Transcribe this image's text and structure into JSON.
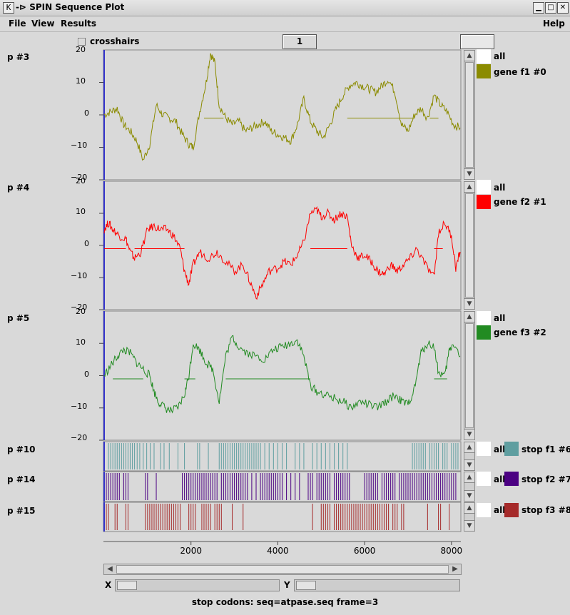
{
  "window": {
    "title": "SPIN Sequence Plot",
    "app_icon": "K",
    "pin_glyph": "-⊳"
  },
  "menu": {
    "file": "File",
    "view": "View",
    "results": "Results",
    "help": "Help"
  },
  "toolbar": {
    "crosshairs_label": "crosshairs",
    "crosshairs_checked": false,
    "counter_value": "1",
    "blank_field_value": ""
  },
  "plots": [
    {
      "label": "p #3",
      "type": "line",
      "ylim": [
        -20,
        20
      ],
      "yticks": [
        10,
        0,
        -10,
        -20
      ],
      "ytick_labels": [
        "10",
        "0",
        "−10",
        "−20"
      ],
      "top_tick_label": "20",
      "color": "#8b8b00",
      "legend": [
        {
          "label": "all",
          "swatch": "#ffffff"
        },
        {
          "label": "gene f1 #0",
          "swatch": "#8b8b00"
        }
      ],
      "series_x": [
        0,
        150,
        300,
        450,
        600,
        750,
        900,
        1050,
        1200,
        1350,
        1500,
        1650,
        1800,
        1950,
        2050,
        2200,
        2350,
        2450,
        2550,
        2650,
        2800,
        2950,
        3100,
        3250,
        3400,
        3550,
        3700,
        3850,
        4000,
        4150,
        4300,
        4450,
        4600,
        4750,
        4900,
        5050,
        5200,
        5350,
        5500,
        5650,
        5800,
        5950,
        6100,
        6250,
        6400,
        6550,
        6700,
        6850,
        7000,
        7150,
        7300,
        7450,
        7600,
        7750,
        7900,
        8050,
        8200
      ],
      "series_y": [
        0,
        1,
        2,
        -3,
        -5,
        -8,
        -14,
        -9,
        3,
        0,
        -1,
        -2,
        -6,
        -9,
        -10,
        1,
        10,
        19,
        16,
        3,
        -1,
        -3,
        -2,
        -5,
        -4,
        -3,
        -2,
        -5,
        -6,
        -7,
        -8,
        -3,
        5,
        -2,
        -5,
        -7,
        -3,
        2,
        6,
        9,
        10,
        9,
        8,
        7,
        9,
        11,
        7,
        -3,
        -5,
        0,
        2,
        -1,
        6,
        3,
        1,
        -3,
        -4
      ],
      "flat_segments": [
        {
          "x0": 2300,
          "x1": 2750,
          "y": -1
        },
        {
          "x0": 5600,
          "x1": 7150,
          "y": -1
        },
        {
          "x0": 7500,
          "x1": 7700,
          "y": -1
        }
      ]
    },
    {
      "label": "p #4",
      "type": "line",
      "ylim": [
        -20,
        20
      ],
      "yticks": [
        10,
        0,
        -10,
        -20
      ],
      "ytick_labels": [
        "10",
        "0",
        "−10",
        "−20"
      ],
      "top_tick_label": "20",
      "color": "#ff0000",
      "legend": [
        {
          "label": "all",
          "swatch": "#ffffff"
        },
        {
          "label": "gene f2 #1",
          "swatch": "#ff0000"
        }
      ],
      "series_x": [
        0,
        100,
        200,
        350,
        500,
        600,
        700,
        850,
        1000,
        1150,
        1300,
        1450,
        1600,
        1750,
        1850,
        1950,
        2050,
        2200,
        2400,
        2600,
        2800,
        3000,
        3200,
        3350,
        3500,
        3650,
        3800,
        4000,
        4150,
        4300,
        4450,
        4600,
        4750,
        4900,
        5000,
        5150,
        5300,
        5450,
        5600,
        5700,
        5850,
        6000,
        6150,
        6300,
        6450,
        6600,
        6750,
        6900,
        7050,
        7200,
        7400,
        7600,
        7700,
        7850,
        8000,
        8100,
        8200
      ],
      "series_y": [
        5,
        7,
        5,
        3,
        2,
        -2,
        -4,
        -2,
        5,
        6,
        5,
        5,
        3,
        -1,
        -8,
        -12,
        -6,
        -2,
        -4,
        -2,
        -5,
        -8,
        -6,
        -11,
        -16,
        -12,
        -8,
        -7,
        -5,
        -6,
        -3,
        1,
        10,
        11,
        9,
        10,
        8,
        10,
        9,
        0,
        -4,
        -3,
        -5,
        -8,
        -9,
        -6,
        -8,
        -6,
        -4,
        -1,
        -6,
        -10,
        4,
        7,
        3,
        -7,
        -2
      ],
      "flat_segments": [
        {
          "x0": 0,
          "x1": 500,
          "y": -1
        },
        {
          "x0": 700,
          "x1": 1850,
          "y": -1
        },
        {
          "x0": 4750,
          "x1": 5600,
          "y": -1
        },
        {
          "x0": 7600,
          "x1": 7800,
          "y": -1
        }
      ]
    },
    {
      "label": "p #5",
      "type": "line",
      "ylim": [
        -20,
        20
      ],
      "yticks": [
        10,
        0,
        -10,
        -20
      ],
      "ytick_labels": [
        "10",
        "0",
        "−10",
        "−20"
      ],
      "top_tick_label": "20",
      "color": "#228b22",
      "legend": [
        {
          "label": "all",
          "swatch": "#ffffff"
        },
        {
          "label": "gene f3 #2",
          "swatch": "#228b22"
        }
      ],
      "series_x": [
        0,
        150,
        300,
        450,
        600,
        750,
        900,
        1050,
        1150,
        1250,
        1400,
        1550,
        1700,
        1850,
        1950,
        2050,
        2200,
        2350,
        2500,
        2650,
        2800,
        2950,
        3100,
        3300,
        3500,
        3700,
        3900,
        4100,
        4300,
        4450,
        4600,
        4750,
        4900,
        5100,
        5300,
        5500,
        5700,
        5900,
        6100,
        6300,
        6500,
        6700,
        6850,
        7000,
        7150,
        7300,
        7450,
        7600,
        7700,
        7850,
        7950,
        8050,
        8200
      ],
      "series_y": [
        0,
        3,
        6,
        8,
        7,
        4,
        2,
        0,
        -5,
        -8,
        -10,
        -11,
        -10,
        -6,
        0,
        10,
        8,
        4,
        2,
        -8,
        6,
        12,
        9,
        7,
        6,
        5,
        8,
        9,
        10,
        11,
        6,
        -3,
        -5,
        -6,
        -7,
        -8,
        -10,
        -8,
        -9,
        -10,
        -8,
        -6,
        -8,
        -9,
        -4,
        7,
        10,
        9,
        1,
        0,
        8,
        10,
        6
      ],
      "flat_segments": [
        {
          "x0": 200,
          "x1": 900,
          "y": -1
        },
        {
          "x0": 1850,
          "x1": 2100,
          "y": -1
        },
        {
          "x0": 2800,
          "x1": 4750,
          "y": -1
        },
        {
          "x0": 7600,
          "x1": 7900,
          "y": -1
        }
      ]
    },
    {
      "label": "p #10",
      "type": "stops",
      "color": "#5f9ea0",
      "legend": [
        {
          "label": "all",
          "swatch": "#ffffff"
        },
        {
          "label": "stop f1 #6",
          "swatch": "#5f9ea0"
        }
      ],
      "stop_positions": [
        100,
        150,
        200,
        250,
        300,
        350,
        400,
        450,
        500,
        550,
        600,
        650,
        700,
        760,
        820,
        900,
        980,
        1060,
        1150,
        1300,
        1380,
        1500,
        1700,
        1850,
        2150,
        2200,
        2400,
        2650,
        2700,
        2750,
        2800,
        2850,
        2900,
        2950,
        3000,
        3050,
        3100,
        3150,
        3200,
        3250,
        3300,
        3350,
        3400,
        3450,
        3500,
        3550,
        3600,
        3700,
        3800,
        3900,
        4000,
        4100,
        4200,
        4400,
        4500,
        4600,
        4800,
        4900,
        5000,
        5100,
        5200,
        5300,
        5400,
        5500,
        5600,
        7100,
        7150,
        7200,
        7250,
        7300,
        7350,
        7400,
        7500,
        7550,
        7600,
        7650,
        7700,
        7800,
        7850,
        7900,
        8000,
        8050,
        8100,
        8150
      ]
    },
    {
      "label": "p #14",
      "type": "stops",
      "color": "#4b0082",
      "legend": [
        {
          "label": "all",
          "swatch": "#ffffff"
        },
        {
          "label": "stop f2 #7",
          "swatch": "#4b0082"
        }
      ],
      "stop_positions": [
        50,
        100,
        150,
        200,
        250,
        300,
        350,
        450,
        500,
        550,
        950,
        1000,
        1200,
        1800,
        1850,
        1900,
        1950,
        2000,
        2050,
        2100,
        2150,
        2200,
        2250,
        2300,
        2350,
        2400,
        2450,
        2500,
        2550,
        2600,
        2700,
        2750,
        2800,
        2850,
        2900,
        2950,
        3000,
        3050,
        3100,
        3150,
        3200,
        3250,
        3300,
        3400,
        3500,
        3600,
        3650,
        3700,
        3750,
        3800,
        3850,
        3900,
        3950,
        4000,
        4050,
        4100,
        4200,
        4300,
        4400,
        4500,
        4700,
        4750,
        4800,
        4900,
        4950,
        5000,
        5050,
        5100,
        5150,
        5200,
        5300,
        5350,
        5400,
        5450,
        5500,
        5550,
        5600,
        5650,
        6000,
        6050,
        6100,
        6150,
        6200,
        6250,
        6300,
        6400,
        6450,
        6500,
        6550,
        6600,
        6650,
        6700,
        6800,
        6850,
        6900,
        6950,
        7000,
        7050,
        7100,
        7150,
        7200,
        7250,
        7300,
        7350,
        7400,
        7450,
        7500,
        7550,
        7600,
        7650,
        7700,
        7750,
        7800,
        7850,
        7900,
        7950,
        8000,
        8050,
        8100
      ]
    },
    {
      "label": "p #15",
      "type": "stops",
      "color": "#a52a2a",
      "legend": [
        {
          "label": "all",
          "swatch": "#ffffff"
        },
        {
          "label": "stop f3 #8",
          "swatch": "#a52a2a"
        }
      ],
      "stop_positions": [
        50,
        100,
        250,
        300,
        500,
        550,
        950,
        1000,
        1050,
        1100,
        1150,
        1200,
        1250,
        1300,
        1350,
        1400,
        1450,
        1500,
        1550,
        1600,
        1650,
        1700,
        1750,
        1950,
        2000,
        2050,
        2100,
        2250,
        2300,
        2350,
        2400,
        2450,
        2550,
        2600,
        2650,
        2700,
        2950,
        3200,
        4800,
        5000,
        5050,
        5100,
        5150,
        5200,
        5300,
        5350,
        5400,
        5450,
        5500,
        5550,
        5600,
        5650,
        5700,
        5750,
        5800,
        5850,
        5900,
        5950,
        6000,
        6050,
        6100,
        6150,
        6200,
        6250,
        6300,
        6350,
        6400,
        6450,
        6500,
        6550,
        6650,
        6700,
        6750,
        6850,
        6900,
        7450,
        7700,
        7750,
        7950
      ]
    }
  ],
  "x_axis": {
    "range": [
      0,
      8200
    ],
    "ticks": [
      2000,
      4000,
      6000,
      8000
    ],
    "tick_labels": [
      "2000",
      "4000",
      "6000",
      "8000"
    ]
  },
  "controls": {
    "x_label": "X",
    "y_label": "Y"
  },
  "status": "stop codons: seq=atpase.seq frame=3",
  "icons": {
    "up": "▲",
    "down": "▼",
    "left": "◀",
    "right": "▶",
    "minimize": "▁",
    "maximize": "□",
    "close": "✕"
  }
}
